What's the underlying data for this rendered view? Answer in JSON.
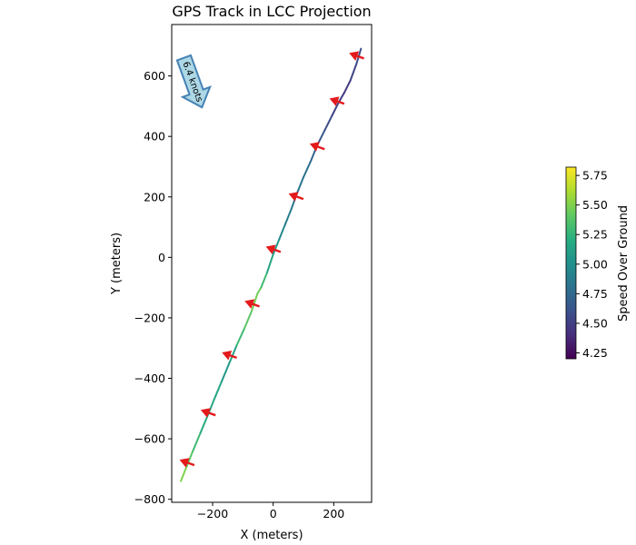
{
  "chart_data": {
    "type": "line",
    "title": "GPS Track in LCC Projection",
    "xlabel": "X (meters)",
    "ylabel": "Y (meters)",
    "xlim": [
      -335,
      325
    ],
    "ylim": [
      -810,
      770
    ],
    "x_ticks": [
      -200,
      0,
      200
    ],
    "y_ticks": [
      -800,
      -600,
      -400,
      -200,
      0,
      200,
      400,
      600
    ],
    "x_tick_labels": [
      "−200",
      "0",
      "200"
    ],
    "y_tick_labels": [
      "−800",
      "−600",
      "−400",
      "−200",
      "0",
      "200",
      "400",
      "600"
    ],
    "grid": false,
    "colormap": "viridis",
    "track": {
      "x": [
        -305,
        -285,
        -265,
        -240,
        -215,
        -195,
        -170,
        -145,
        -120,
        -95,
        -70,
        -52,
        -40,
        -20,
        0,
        20,
        40,
        60,
        80,
        100,
        125,
        145,
        170,
        195,
        215,
        235,
        255,
        275,
        290
      ],
      "y": [
        -740,
        -690,
        -640,
        -580,
        -520,
        -470,
        -410,
        -350,
        -290,
        -235,
        -175,
        -120,
        -100,
        -50,
        10,
        60,
        110,
        160,
        215,
        265,
        320,
        370,
        420,
        470,
        510,
        545,
        585,
        640,
        690
      ],
      "speed": [
        5.55,
        5.45,
        5.35,
        5.25,
        5.15,
        5.2,
        5.1,
        5.0,
        5.25,
        5.35,
        5.45,
        5.5,
        5.4,
        5.2,
        5.1,
        5.0,
        4.9,
        4.85,
        4.8,
        4.85,
        4.75,
        4.7,
        4.6,
        4.55,
        4.5,
        4.45,
        4.5,
        4.55,
        4.6
      ]
    },
    "heading_arrows": {
      "x": [
        -280,
        -210,
        -140,
        -65,
        5,
        80,
        150,
        215,
        280
      ],
      "y": [
        -680,
        -515,
        -325,
        -155,
        25,
        200,
        365,
        515,
        665
      ]
    },
    "wind_annotation": {
      "label": "6.4 knots",
      "direction": "south-southeast"
    },
    "colorbar": {
      "label": "Speed Over Ground",
      "min": 4.2,
      "max": 5.82,
      "ticks": [
        4.25,
        4.5,
        4.75,
        5.0,
        5.25,
        5.5,
        5.75
      ],
      "tick_labels": [
        "4.25",
        "4.50",
        "4.75",
        "5.00",
        "5.25",
        "5.50",
        "5.75"
      ]
    },
    "colors": {
      "arrow": "#e41a1c",
      "wind_fill": "#add8e6",
      "wind_edge": "#4682b4"
    }
  }
}
